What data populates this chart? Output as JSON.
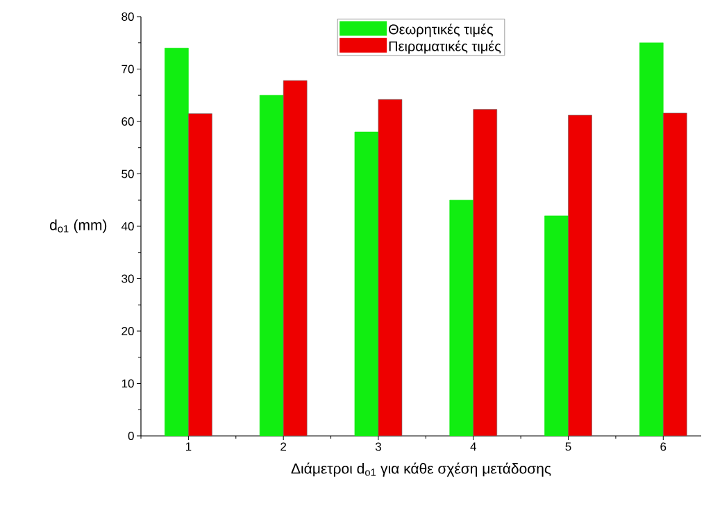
{
  "chart_data": {
    "type": "bar",
    "xlabel": "Διάμετροι d$_{o1}$ για κάθε σχέση μετάδοσης",
    "ylabel": "d$_{o1}$ (mm)",
    "categories": [
      "1",
      "2",
      "3",
      "4",
      "5",
      "6"
    ],
    "series": [
      {
        "name": "Θεωρητικές τιμές",
        "color": "#11ee11",
        "values": [
          74,
          65,
          58,
          45,
          42,
          75
        ]
      },
      {
        "name": "Πειραματικές τιμές",
        "color": "#ee0000",
        "values": [
          61.5,
          67.8,
          64.2,
          62.3,
          61.2,
          61.6
        ]
      }
    ],
    "ylim": [
      0,
      80
    ],
    "yticks": [
      0,
      10,
      20,
      30,
      40,
      50,
      60,
      70,
      80
    ],
    "grid": false,
    "legend": "top"
  }
}
